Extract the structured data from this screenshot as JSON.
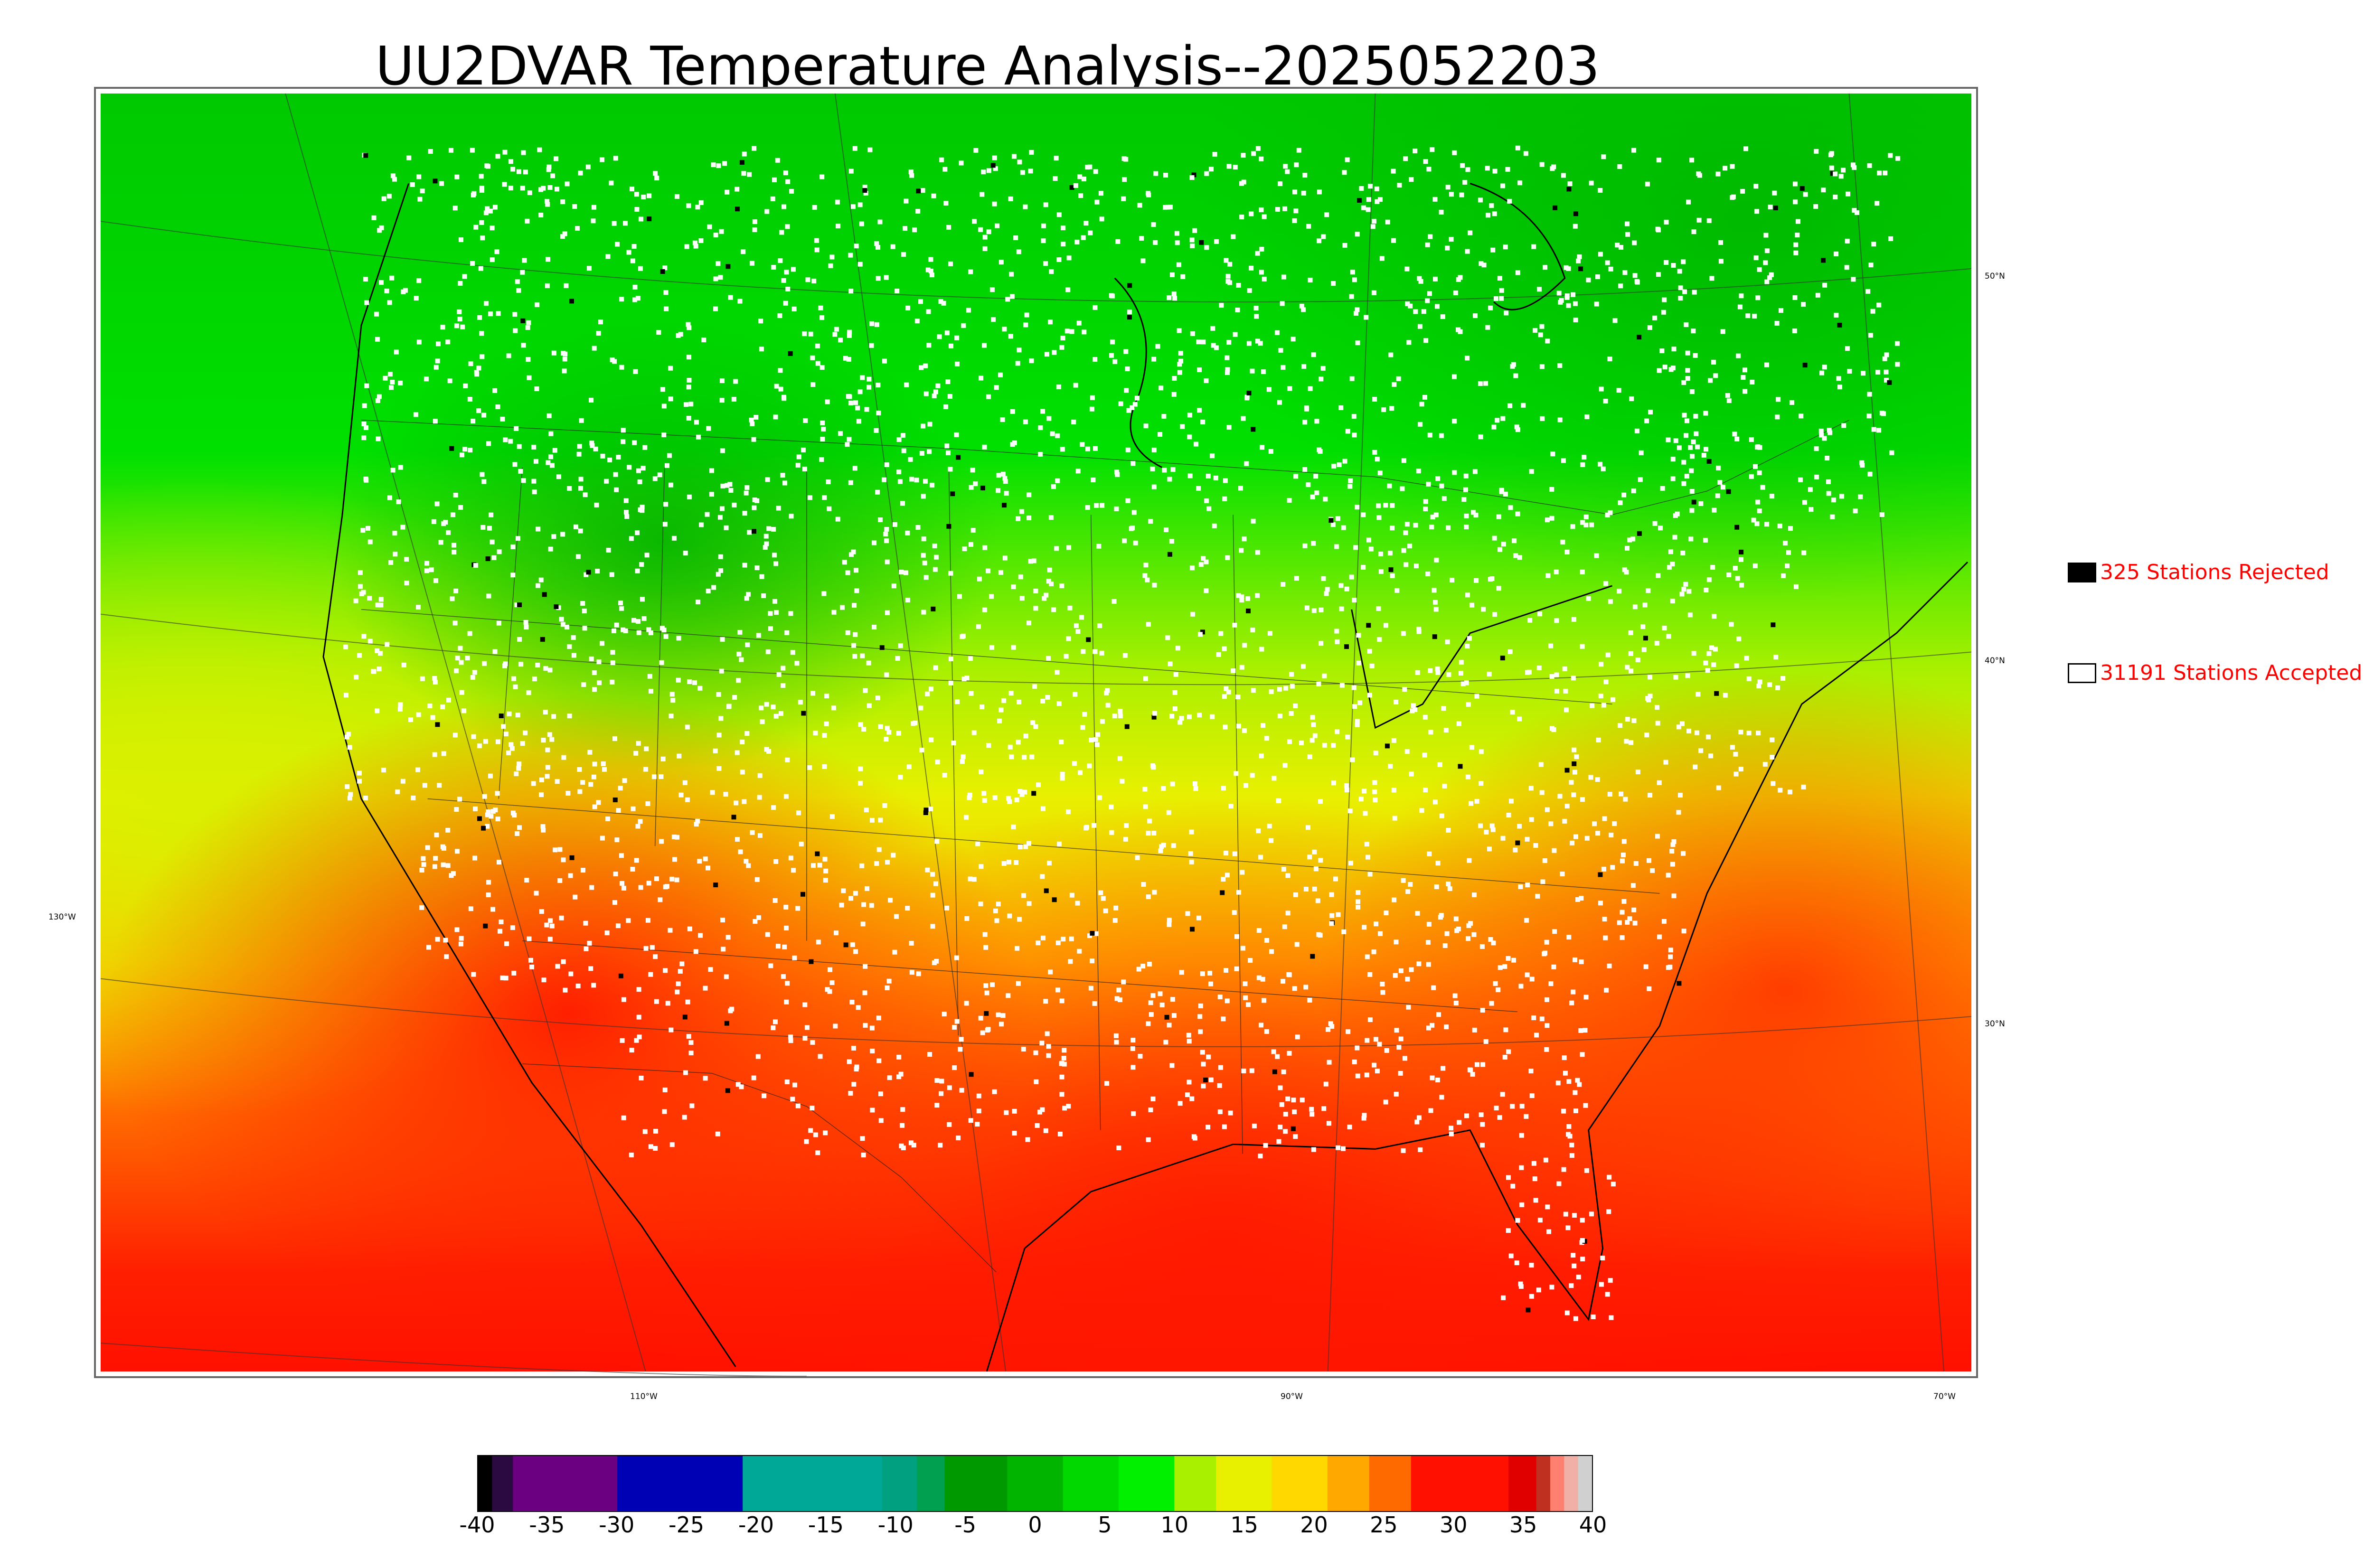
{
  "title": "UU2DVAR Temperature Analysis--2025052203",
  "lat_labels": [
    "50°N",
    "40°N",
    "30°N"
  ],
  "lon_labels": [
    "130°W",
    "110°W",
    "90°W",
    "70°W"
  ],
  "legend": {
    "rejected": {
      "label": "325 Stations Rejected",
      "swatch_color": "#000000"
    },
    "accepted": {
      "label": "31191 Stations Accepted",
      "swatch_color": "#ffffff"
    }
  },
  "colorbar": {
    "ticks": [
      "-40",
      "-35",
      "-30",
      "-25",
      "-20",
      "-15",
      "-10",
      "-5",
      "0",
      "5",
      "10",
      "15",
      "20",
      "25",
      "30",
      "35",
      "40"
    ],
    "min": -40,
    "max": 40,
    "colors": [
      {
        "from": -40,
        "to": -39,
        "color": "#000000"
      },
      {
        "from": -39,
        "to": -37.5,
        "color": "#2a0a40"
      },
      {
        "from": -37.5,
        "to": -30,
        "color": "#6b0080"
      },
      {
        "from": -30,
        "to": -21,
        "color": "#0000b4"
      },
      {
        "from": -21,
        "to": -11,
        "color": "#00a898"
      },
      {
        "from": -11,
        "to": -8.5,
        "color": "#00a080"
      },
      {
        "from": -8.5,
        "to": -6.5,
        "color": "#00a050"
      },
      {
        "from": -6.5,
        "to": -2,
        "color": "#009a00"
      },
      {
        "from": -2,
        "to": 2,
        "color": "#00b400"
      },
      {
        "from": 2,
        "to": 6,
        "color": "#00d800"
      },
      {
        "from": 6,
        "to": 10,
        "color": "#00f000"
      },
      {
        "from": 10,
        "to": 13,
        "color": "#a8f000"
      },
      {
        "from": 13,
        "to": 17,
        "color": "#e8f000"
      },
      {
        "from": 17,
        "to": 21,
        "color": "#ffd800"
      },
      {
        "from": 21,
        "to": 24,
        "color": "#ffa800"
      },
      {
        "from": 24,
        "to": 27,
        "color": "#ff6a00"
      },
      {
        "from": 27,
        "to": 34,
        "color": "#ff1000"
      },
      {
        "from": 34,
        "to": 36,
        "color": "#e00000"
      },
      {
        "from": 36,
        "to": 37,
        "color": "#c03020"
      },
      {
        "from": 37,
        "to": 38,
        "color": "#ff8070"
      },
      {
        "from": 38,
        "to": 39,
        "color": "#f0b0a8"
      },
      {
        "from": 39,
        "to": 40,
        "color": "#d0d0d0"
      }
    ]
  }
}
